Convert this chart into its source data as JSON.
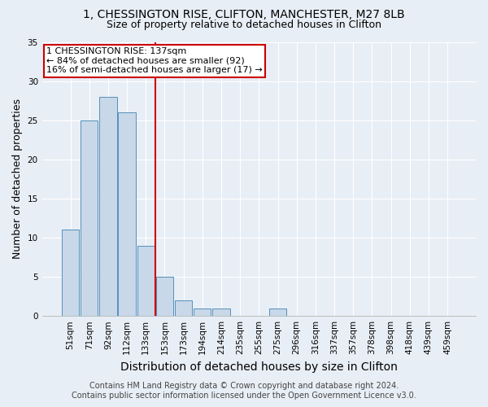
{
  "title": "1, CHESSINGTON RISE, CLIFTON, MANCHESTER, M27 8LB",
  "subtitle": "Size of property relative to detached houses in Clifton",
  "xlabel": "Distribution of detached houses by size in Clifton",
  "ylabel": "Number of detached properties",
  "bar_labels": [
    "51sqm",
    "71sqm",
    "92sqm",
    "112sqm",
    "133sqm",
    "153sqm",
    "173sqm",
    "194sqm",
    "214sqm",
    "235sqm",
    "255sqm",
    "275sqm",
    "296sqm",
    "316sqm",
    "337sqm",
    "357sqm",
    "378sqm",
    "398sqm",
    "418sqm",
    "439sqm",
    "459sqm"
  ],
  "bar_values": [
    11,
    25,
    28,
    26,
    9,
    5,
    2,
    1,
    1,
    0,
    0,
    1,
    0,
    0,
    0,
    0,
    0,
    0,
    0,
    0,
    0
  ],
  "bar_color": "#c8d8e8",
  "bar_edge_color": "#5590bb",
  "reference_line_x": 4.5,
  "annotation_line1": "1 CHESSINGTON RISE: 137sqm",
  "annotation_line2": "← 84% of detached houses are smaller (92)",
  "annotation_line3": "16% of semi-detached houses are larger (17) →",
  "annotation_box_color": "#ffffff",
  "annotation_box_edge_color": "#cc0000",
  "vline_color": "#cc0000",
  "ylim": [
    0,
    35
  ],
  "yticks": [
    0,
    5,
    10,
    15,
    20,
    25,
    30,
    35
  ],
  "footer_line1": "Contains HM Land Registry data © Crown copyright and database right 2024.",
  "footer_line2": "Contains public sector information licensed under the Open Government Licence v3.0.",
  "bg_color": "#e8eef5",
  "plot_bg_color": "#e8eef5",
  "grid_color": "#ffffff",
  "title_fontsize": 10,
  "subtitle_fontsize": 9,
  "xlabel_fontsize": 10,
  "ylabel_fontsize": 9,
  "tick_fontsize": 7.5,
  "annotation_fontsize": 8,
  "footer_fontsize": 7
}
